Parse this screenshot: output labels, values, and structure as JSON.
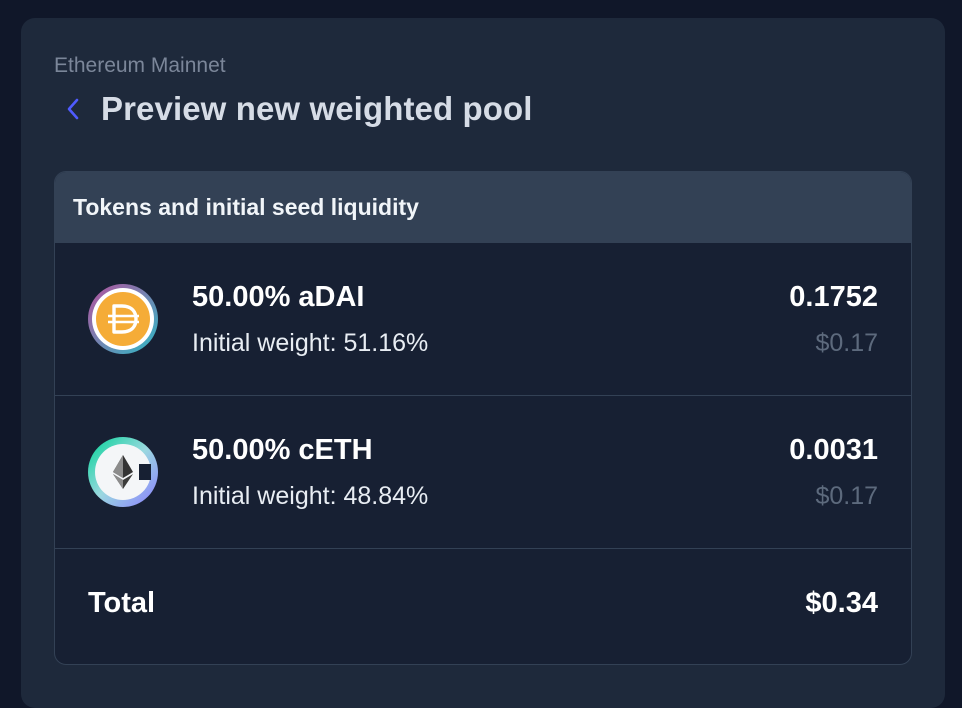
{
  "network": "Ethereum Mainnet",
  "title": "Preview new weighted pool",
  "card": {
    "header": "Tokens and initial seed liquidity",
    "tokens": [
      {
        "name": "50.00% aDAI",
        "weight": "Initial weight: 51.16%",
        "amount": "0.1752",
        "usd": "$0.17",
        "icon": "dai-icon"
      },
      {
        "name": "50.00% cETH",
        "weight": "Initial weight: 48.84%",
        "amount": "0.0031",
        "usd": "$0.17",
        "icon": "eth-icon"
      }
    ],
    "total": {
      "label": "Total",
      "value": "$0.34"
    }
  },
  "colors": {
    "background": "#101729",
    "panel": "#1e293b",
    "card": "#172033",
    "header": "#334155",
    "accent": "#4f5bff",
    "dai": "#f5ac37"
  }
}
